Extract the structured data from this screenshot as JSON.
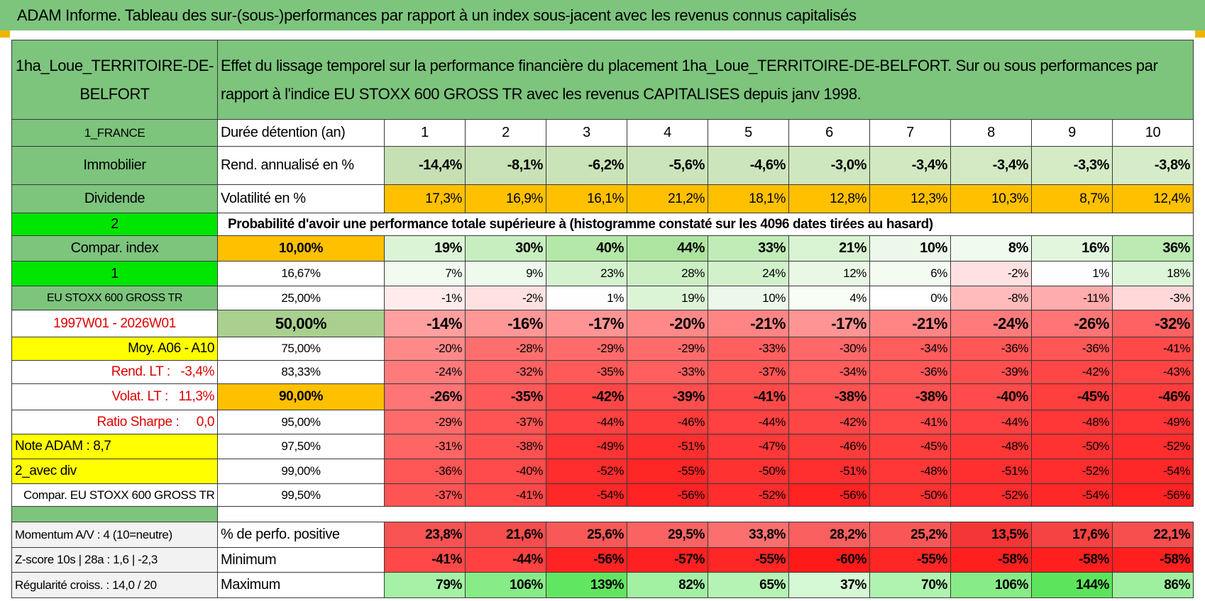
{
  "title": "ADAM Informe. Tableau des sur-(sous-)performances par rapport à un index sous-jacent avec les revenus connus capitalisés",
  "header": {
    "name": "1ha_Loue_TERRITOIRE-DE-BELFORT",
    "description": "Effet du lissage temporel sur la performance financière du placement 1ha_Loue_TERRITOIRE-DE-BELFORT. Sur ou sous performances par rapport à l'indice EU STOXX 600 GROSS TR avec les revenus CAPITALISES depuis janv 1998."
  },
  "table": {
    "rows": [
      {
        "side": "1_FRANCE",
        "label": "Durée détention (an)",
        "values": [
          "1",
          "2",
          "3",
          "4",
          "5",
          "6",
          "7",
          "8",
          "9",
          "10"
        ]
      },
      {
        "side": "Immobilier",
        "label": "Rend. annualisé en %",
        "values": [
          "-14,4%",
          "-8,1%",
          "-6,2%",
          "-5,6%",
          "-4,6%",
          "-3,0%",
          "-3,4%",
          "-3,4%",
          "-3,3%",
          "-3,8%"
        ]
      },
      {
        "side": "Dividende",
        "label": "Volatilité en %",
        "values": [
          "17,3%",
          "16,9%",
          "16,1%",
          "21,2%",
          "18,1%",
          "12,8%",
          "12,3%",
          "10,3%",
          "8,7%",
          "12,4%"
        ]
      },
      {
        "side": "2",
        "label": "Probabilité d'avoir une performance totale supérieure à (histogramme constaté sur les 4096 dates tirées au hasard)"
      },
      {
        "side": "Compar. index",
        "label": "10,00%",
        "values": [
          "19%",
          "30%",
          "40%",
          "44%",
          "33%",
          "21%",
          "10%",
          "8%",
          "16%",
          "36%"
        ]
      },
      {
        "side": "1",
        "label": "16,67%",
        "values": [
          "7%",
          "9%",
          "23%",
          "28%",
          "24%",
          "12%",
          "6%",
          "-2%",
          "1%",
          "18%"
        ]
      },
      {
        "side": "EU STOXX 600 GROSS TR",
        "label": "25,00%",
        "values": [
          "-1%",
          "-2%",
          "1%",
          "19%",
          "10%",
          "4%",
          "0%",
          "-8%",
          "-11%",
          "-3%"
        ]
      },
      {
        "side": "1997W01 - 2026W01",
        "label": "50,00%",
        "values": [
          "-14%",
          "-16%",
          "-17%",
          "-20%",
          "-21%",
          "-17%",
          "-21%",
          "-24%",
          "-26%",
          "-32%"
        ]
      },
      {
        "side": "Moy. A06 - A10",
        "label": "75,00%",
        "values": [
          "-20%",
          "-28%",
          "-29%",
          "-29%",
          "-33%",
          "-30%",
          "-34%",
          "-36%",
          "-36%",
          "-41%"
        ]
      },
      {
        "side": "Rend. LT :   -3,4%",
        "label": "83,33%",
        "values": [
          "-24%",
          "-32%",
          "-35%",
          "-33%",
          "-37%",
          "-34%",
          "-36%",
          "-39%",
          "-42%",
          "-43%"
        ]
      },
      {
        "side": "Volat. LT :   11,3%",
        "label": "90,00%",
        "values": [
          "-26%",
          "-35%",
          "-42%",
          "-39%",
          "-41%",
          "-38%",
          "-38%",
          "-40%",
          "-45%",
          "-46%"
        ]
      },
      {
        "side": "Ratio Sharpe :     0,0",
        "label": "95,00%",
        "values": [
          "-29%",
          "-37%",
          "-44%",
          "-46%",
          "-44%",
          "-42%",
          "-41%",
          "-44%",
          "-48%",
          "-49%"
        ]
      },
      {
        "side": "Note ADAM : 8,7",
        "label": "97,50%",
        "values": [
          "-31%",
          "-38%",
          "-49%",
          "-51%",
          "-47%",
          "-46%",
          "-45%",
          "-48%",
          "-50%",
          "-52%"
        ]
      },
      {
        "side": "2_avec div",
        "label": "99,00%",
        "values": [
          "-36%",
          "-40%",
          "-52%",
          "-55%",
          "-50%",
          "-51%",
          "-48%",
          "-51%",
          "-52%",
          "-54%"
        ]
      },
      {
        "side": "Compar. EU STOXX 600 GROSS TR",
        "label": "99,50%",
        "values": [
          "-37%",
          "-41%",
          "-54%",
          "-56%",
          "-52%",
          "-56%",
          "-50%",
          "-52%",
          "-54%",
          "-56%"
        ]
      }
    ]
  },
  "summary": {
    "rows": [
      {
        "side": "Momentum A/V : 4 (10=neutre)",
        "label": "% de perfo. positive",
        "values": [
          "23,8%",
          "21,6%",
          "25,6%",
          "29,5%",
          "33,8%",
          "28,2%",
          "25,2%",
          "13,5%",
          "17,6%",
          "22,1%"
        ]
      },
      {
        "side": "Z-score 10s | 28a : 1,6 | -2,3",
        "label": "Minimum",
        "values": [
          "-41%",
          "-44%",
          "-56%",
          "-57%",
          "-55%",
          "-60%",
          "-55%",
          "-58%",
          "-58%",
          "-58%"
        ]
      },
      {
        "side": "Régularité croiss. : 14,0 / 20",
        "label": "Maximum",
        "values": [
          "79%",
          "106%",
          "139%",
          "82%",
          "65%",
          "37%",
          "70%",
          "106%",
          "144%",
          "86%"
        ]
      }
    ]
  }
}
